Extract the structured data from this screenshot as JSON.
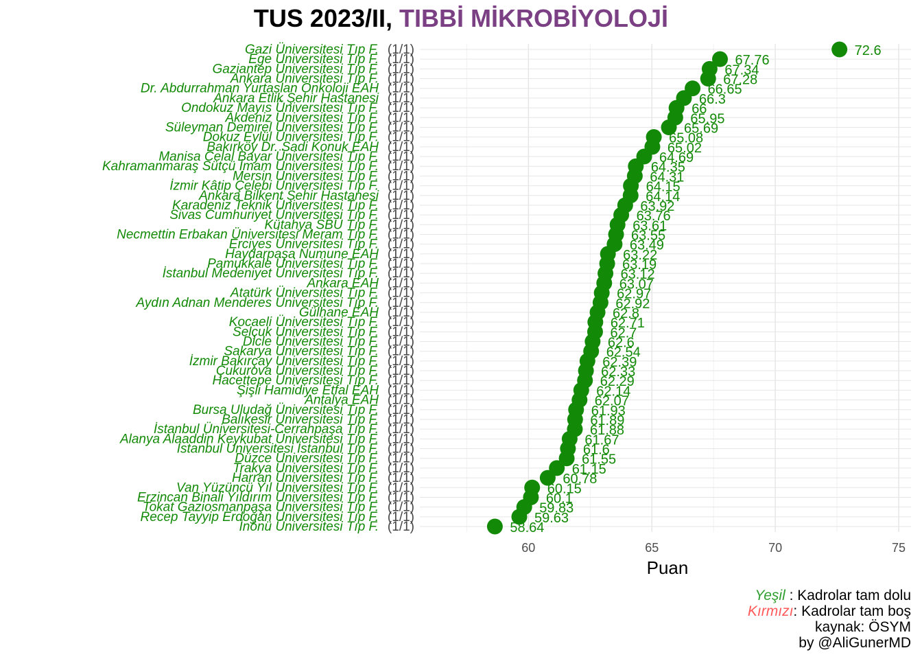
{
  "title": {
    "prefix": "TUS 2023/II,",
    "accent": "TIBBİ MİKROBİYOLOJİ",
    "accent_color": "#7b3f84"
  },
  "chart_data": {
    "type": "scatter",
    "xlabel": "Puan",
    "ylabel": "",
    "xlim": [
      55.6,
      75.5
    ],
    "xticks": [
      60,
      65,
      70,
      75
    ],
    "grid": true,
    "point_color": "#138a07",
    "label_color": "#138a07",
    "quota_color": "#444444",
    "categories": [
      "Gazi Üniversitesi Tıp F.",
      "Ege Üniversitesi Tıp F.",
      "Gaziantep Üniversitesi Tıp F.",
      "Ankara Üniversitesi Tıp F.",
      "Dr. Abdurrahman Yurtaslan Onkoloji EAH",
      "Ankara Etlik Şehir Hastanesi",
      "Ondokuz Mayıs Üniversitesi Tıp F.",
      "Akdeniz Üniversitesi Tıp F.",
      "Süleyman Demirel Üniversitesi Tıp F.",
      "Dokuz Eylül Üniversitesi Tıp F.",
      "Bakırköy Dr. Sadi Konuk EAH",
      "Manisa Celal Bayar Üniversitesi Tıp F.",
      "Kahramanmaraş Sütçü İmam Üniversitesi Tıp F.",
      "Mersin Üniversitesi Tıp F.",
      "İzmir Kâtip Çelebi Üniversitesi Tıp F.",
      "Ankara Bilkent Şehir Hastanesi",
      "Karadeniz Teknik Üniversitesi Tıp F.",
      "Sivas Cumhuriyet Üniversitesi Tıp F.",
      "Kütahya SBÜ Tıp F.",
      "Necmettin Erbakan Üniversitesi Meram Tıp F.",
      "Erciyes Üniversitesi Tıp F.",
      "Haydarpaşa Numune EAH",
      "Pamukkale Üniversitesi Tıp F.",
      "İstanbul Medeniyet Üniversitesi Tıp F.",
      "Ankara EAH",
      "Atatürk Üniversitesi Tıp F.",
      "Aydın Adnan Menderes Üniversitesi Tıp F.",
      "Gülhane EAH",
      "Kocaeli Üniversitesi Tıp F.",
      "Selçuk Üniversitesi Tıp F.",
      "Dicle Üniversitesi Tıp F.",
      "Sakarya Üniversitesi Tıp F.",
      "İzmir Bakırçay Üniversitesi Tıp F.",
      "Çukurova Üniversitesi Tıp F.",
      "Hacettepe Üniversitesi Tıp F.",
      "Şişli Hamidiye Etfal EAH",
      "Antalya EAH",
      "Bursa Uludağ Üniversitesi Tıp F.",
      "Balıkesir Üniversitesi Tıp F.",
      "İstanbul Üniversitesi-Cerrahpaşa Tıp F.",
      "Alanya Alaaddin Keykubat Üniversitesi Tıp F.",
      "İstanbul Üniversitesi İstanbul Tıp F.",
      "Düzce Üniversitesi Tıp F.",
      "Trakya Üniversitesi Tıp F.",
      "Harran Üniversitesi Tıp F.",
      "Van Yüzüncü Yıl Üniversitesi Tıp F.",
      "Erzincan Binali Yıldırım Üniversitesi Tıp F.",
      "Tokat Gaziosmanpaşa Üniversitesi Tıp F.",
      "Recep Tayyip Erdoğan Üniversitesi Tıp F.",
      "İnönü Üniversitesi Tıp F."
    ],
    "quota": "(1/1)",
    "values": [
      72.6,
      67.76,
      67.34,
      67.28,
      66.65,
      66.3,
      66,
      65.95,
      65.69,
      65.08,
      65.02,
      64.69,
      64.35,
      64.31,
      64.15,
      64.14,
      63.92,
      63.76,
      63.61,
      63.55,
      63.49,
      63.22,
      63.19,
      63.12,
      63.07,
      62.97,
      62.92,
      62.8,
      62.71,
      62.7,
      62.6,
      62.54,
      62.39,
      62.33,
      62.29,
      62.14,
      62.07,
      61.93,
      61.89,
      61.88,
      61.67,
      61.6,
      61.55,
      61.15,
      60.78,
      60.15,
      60.1,
      59.83,
      59.63,
      58.64
    ],
    "value_labels": [
      "72.6",
      "67.76",
      "67.34",
      "67.28",
      "66.65",
      "66.3",
      "66",
      "65.95",
      "65.69",
      "65.08",
      "65.02",
      "64.69",
      "64.35",
      "64.31",
      "64.15",
      "64.14",
      "63.92",
      "63.76",
      "63.61",
      "63.55",
      "63.49",
      "63.22",
      "63.19",
      "63.12",
      "63.07",
      "62.97",
      "62.92",
      "62.8",
      "62.71",
      "62.7",
      "62.6",
      "62.54",
      "62.39",
      "62.33",
      "62.29",
      "62.14",
      "62.07",
      "61.93",
      "61.89",
      "61.88",
      "61.67",
      "61.6",
      "61.55",
      "61.15",
      "60.78",
      "60.15",
      "60.1",
      "59.83",
      "59.63",
      "58.64"
    ]
  },
  "caption": {
    "green_word": "Yeşil",
    "green_text": " : Kadrolar tam dolu",
    "red_word": "Kırmızı",
    "red_text": ": Kadrolar tam boş",
    "source": "kaynak: ÖSYM",
    "author": "by @AliGunerMD"
  }
}
